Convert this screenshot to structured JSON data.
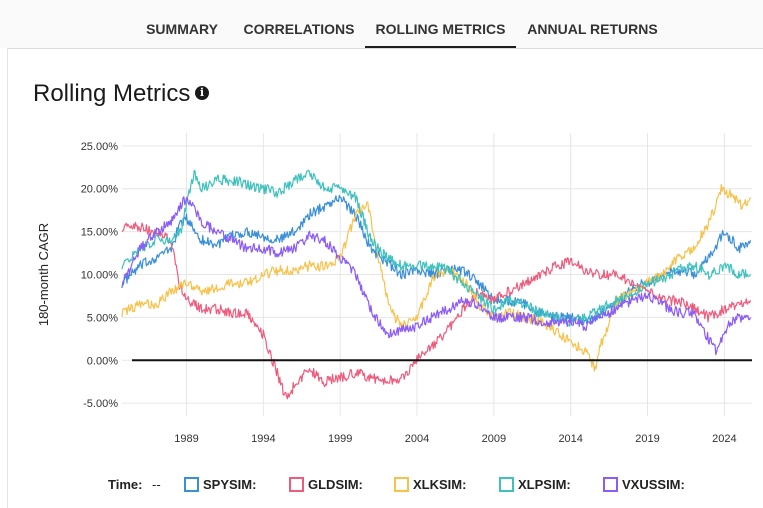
{
  "tabs": [
    {
      "label": "SUMMARY"
    },
    {
      "label": "CORRELATIONS"
    },
    {
      "label": "ROLLING METRICS"
    },
    {
      "label": "ANNUAL RETURNS"
    }
  ],
  "active_tab": "ROLLING METRICS",
  "page_title": "Rolling Metrics",
  "info_icon": "info-circle-icon",
  "legend": {
    "time_label": "Time:",
    "time_value": "--"
  },
  "chart_data": {
    "type": "line",
    "title": "",
    "xlabel": "",
    "ylabel": "180-month CAGR",
    "xlim": [
      1984.8,
      2025.8
    ],
    "ylim": [
      -6.5,
      26.5
    ],
    "yticks": [
      -5,
      0,
      5,
      10,
      15,
      20,
      25
    ],
    "ytick_labels": [
      "-5.00%",
      "0.00%",
      "5.00%",
      "10.00%",
      "15.00%",
      "20.00%",
      "25.00%"
    ],
    "xticks": [
      1989,
      1994,
      1999,
      2004,
      2009,
      2014,
      2019,
      2024
    ],
    "xtick_labels": [
      "1989",
      "1994",
      "1999",
      "2004",
      "2009",
      "2014",
      "2019",
      "2024"
    ],
    "grid": true,
    "zero_line": true,
    "legend_position": "bottom",
    "series": [
      {
        "name": "SPYSIM:",
        "color": "#3a8fd9",
        "x": [
          1984.8,
          1986,
          1987,
          1988,
          1988.6,
          1989,
          1990,
          1991,
          1992,
          1993,
          1994,
          1995,
          1996,
          1997,
          1998,
          1999,
          2000,
          2001,
          2002,
          2003,
          2004,
          2005,
          2006,
          2007,
          2008,
          2009,
          2010,
          2011,
          2012,
          2013,
          2014,
          2015,
          2016,
          2017,
          2018,
          2019,
          2020,
          2021,
          2022,
          2023,
          2024,
          2025,
          2025.7
        ],
        "y": [
          9,
          11,
          12,
          13,
          16,
          16.5,
          14,
          13.5,
          14.5,
          15,
          14.5,
          14,
          15,
          17,
          18,
          19,
          17,
          13,
          11.5,
          10,
          10.5,
          10,
          10.5,
          10.5,
          9,
          7,
          7,
          6.5,
          5.5,
          5,
          5,
          4.5,
          5.5,
          6.5,
          8.5,
          9,
          10,
          10.5,
          10,
          12,
          15,
          13,
          14
        ]
      },
      {
        "name": "GLDSIM:",
        "color": "#ef5b7c",
        "x": [
          1984.8,
          1986,
          1987,
          1988,
          1988.5,
          1989,
          1990,
          1991,
          1992,
          1993,
          1994,
          1994.8,
          1995.5,
          1996,
          1997,
          1998,
          1999,
          2000,
          2001,
          2002,
          2003,
          2004,
          2005,
          2006,
          2007,
          2008,
          2009,
          2010,
          2011,
          2012,
          2013,
          2014,
          2015,
          2016,
          2017,
          2018,
          2019,
          2020,
          2021,
          2022,
          2023,
          2024,
          2025,
          2025.7
        ],
        "y": [
          15.5,
          15.5,
          15,
          14,
          9,
          7,
          6,
          6,
          5.5,
          5.5,
          3,
          -1,
          -4.5,
          -3,
          -1,
          -2.5,
          -2,
          -1.5,
          -2,
          -2.5,
          -2,
          0,
          1.5,
          3.5,
          6,
          8,
          7,
          8,
          9,
          10,
          11,
          11.5,
          10.5,
          10,
          10,
          9,
          8,
          7,
          7,
          6,
          5,
          6,
          6.5,
          7
        ]
      },
      {
        "name": "XLKSIM:",
        "color": "#f8c24a",
        "x": [
          1984.8,
          1986,
          1987,
          1988,
          1989,
          1990,
          1991,
          1992,
          1993,
          1994,
          1995,
          1996,
          1997,
          1998,
          1999,
          2000,
          2000.8,
          2001.5,
          2002.2,
          2003,
          2004,
          2005,
          2006,
          2007,
          2008,
          2009,
          2010,
          2011,
          2012,
          2013,
          2014,
          2015,
          2015.6,
          2016,
          2017,
          2018,
          2019,
          2020,
          2021,
          2022,
          2023,
          2023.8,
          2024.6,
          2025.2,
          2025.7
        ],
        "y": [
          5.5,
          6.5,
          6.5,
          8,
          9,
          8,
          8.5,
          9,
          9,
          10,
          10.5,
          10.5,
          11,
          11,
          12,
          17,
          18,
          12,
          6,
          4,
          5,
          9.5,
          10.5,
          9.5,
          6.5,
          5,
          5.5,
          5,
          4.5,
          3.5,
          2,
          1,
          -1,
          2,
          7,
          8,
          9,
          10,
          12,
          13,
          16,
          20,
          19,
          18,
          19
        ]
      },
      {
        "name": "XLPSIM:",
        "color": "#3fc1be",
        "x": [
          1984.8,
          1986,
          1987,
          1988,
          1988.6,
          1989,
          1989.5,
          1990,
          1991,
          1992,
          1993,
          1994,
          1995,
          1996,
          1997,
          1998,
          1999,
          2000,
          2001,
          2002,
          2003,
          2004,
          2005,
          2006,
          2007,
          2008,
          2009,
          2010,
          2011,
          2012,
          2013,
          2014,
          2015,
          2016,
          2017,
          2018,
          2019,
          2020,
          2021,
          2022,
          2023,
          2024,
          2025,
          2025.7
        ],
        "y": [
          11,
          13,
          14,
          14,
          15,
          18,
          22,
          20,
          21,
          21,
          20.5,
          20,
          19.5,
          21,
          22,
          20,
          20,
          19,
          14,
          12,
          11,
          11,
          11,
          10.5,
          9,
          7.5,
          6,
          7,
          6.5,
          5.5,
          5,
          4.5,
          5,
          6,
          7,
          7.5,
          9,
          9.5,
          10.5,
          11,
          10,
          11,
          10,
          10
        ]
      },
      {
        "name": "VXUSSIM:",
        "color": "#8b5cf6",
        "x": [
          1984.8,
          1986,
          1987,
          1988,
          1988.6,
          1989,
          1990,
          1991,
          1992,
          1993,
          1994,
          1995,
          1996,
          1997,
          1998,
          1999,
          2000,
          2001,
          2002,
          2003,
          2004,
          2005,
          2006,
          2007,
          2008,
          2009,
          2010,
          2011,
          2012,
          2013,
          2014,
          2015,
          2016,
          2017,
          2018,
          2019,
          2020,
          2021,
          2022,
          2022.8,
          2023.5,
          2024,
          2024.8,
          2025.7
        ],
        "y": [
          9,
          13,
          15,
          16,
          18,
          19,
          16,
          15,
          14,
          13,
          13,
          12.5,
          13,
          14.5,
          14,
          12,
          10,
          6,
          3,
          3.5,
          4,
          5,
          6,
          7,
          6.5,
          5,
          5,
          5,
          4.5,
          4.5,
          4.5,
          4,
          5,
          6,
          7,
          7.5,
          6.5,
          5.5,
          5.5,
          3,
          1,
          3.5,
          5,
          5
        ]
      }
    ]
  }
}
